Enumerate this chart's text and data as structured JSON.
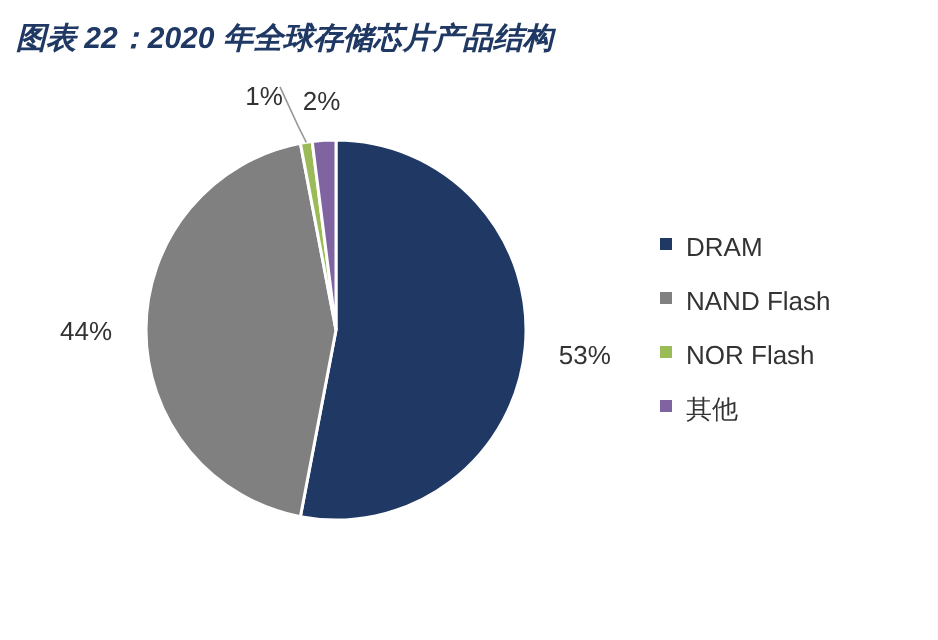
{
  "chart_data": {
    "type": "pie",
    "title": "图表 22：2020 年全球存储芯片产品结构",
    "categories": [
      "DRAM",
      "NAND Flash",
      "NOR Flash",
      "其他"
    ],
    "values": [
      53,
      44,
      1,
      2
    ],
    "colors": [
      "#203864",
      "#808080",
      "#9bbb59",
      "#8064a2"
    ],
    "value_labels": [
      "53%",
      "44%",
      "1%",
      "2%"
    ],
    "legend": "right"
  }
}
